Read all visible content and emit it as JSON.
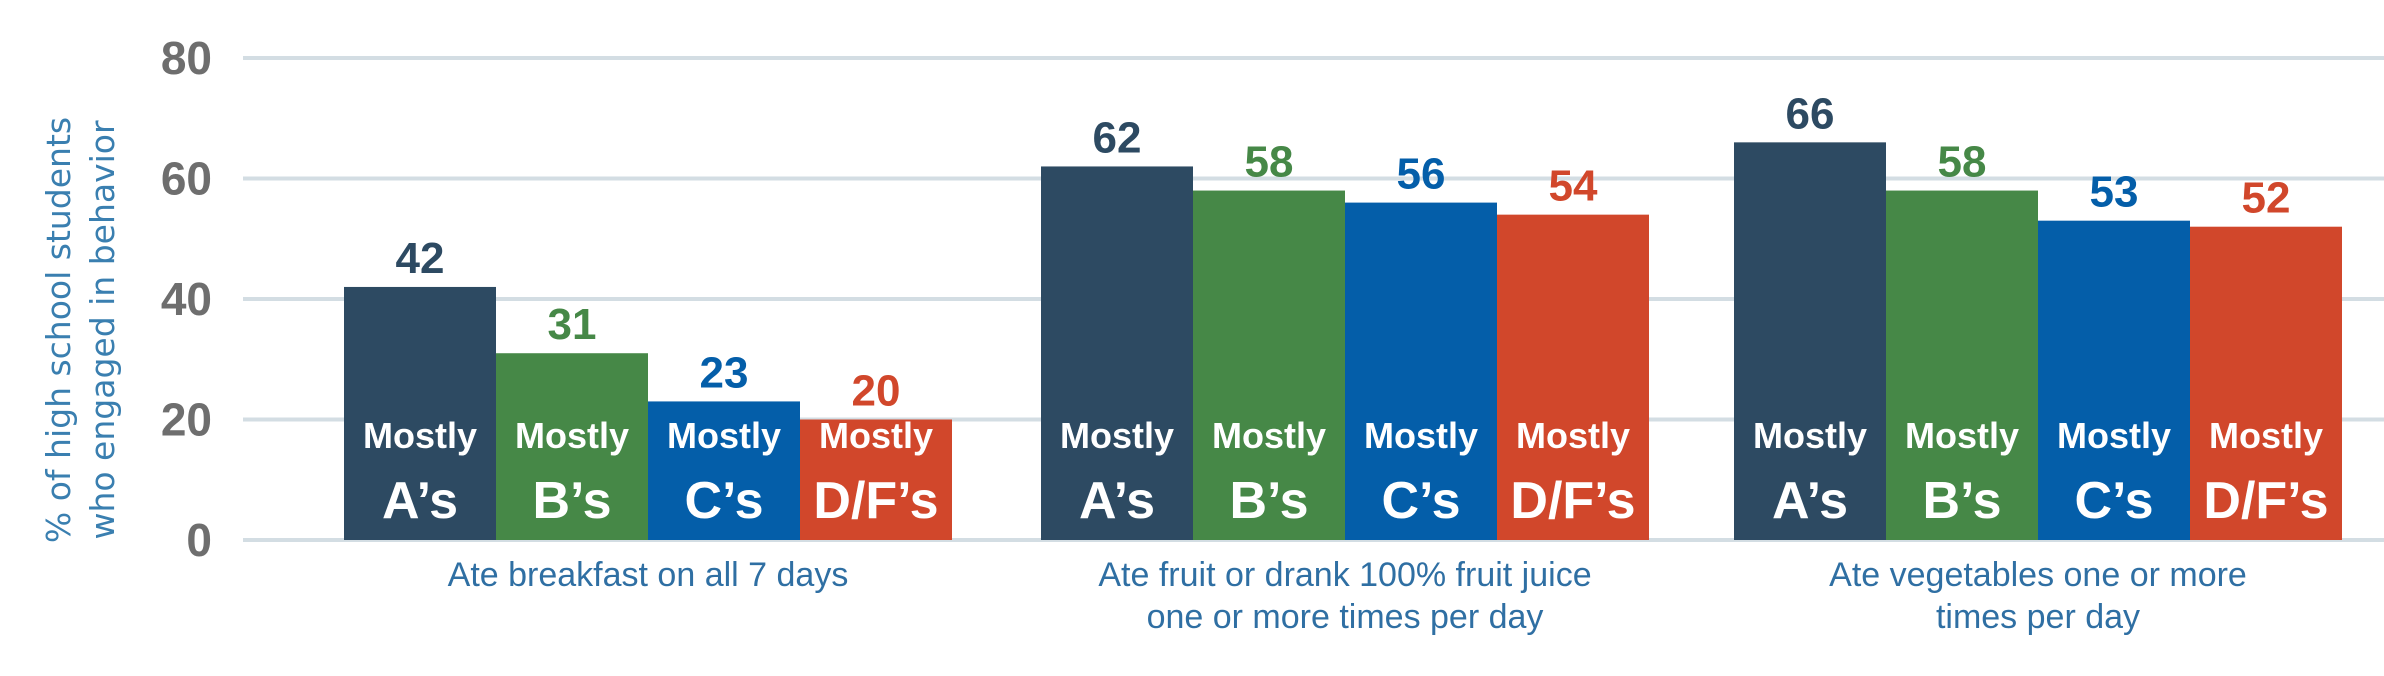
{
  "chart_data": {
    "type": "bar",
    "title": "",
    "ylabel": [
      "% of high school students",
      "who engaged in behavior"
    ],
    "xlabel": "",
    "ylim": [
      0,
      80
    ],
    "yticks": [
      0,
      20,
      40,
      60,
      80
    ],
    "grid": true,
    "legend": "none (series labels printed inside bars)",
    "categories": [
      [
        "Ate breakfast on all 7 days"
      ],
      [
        "Ate fruit or drank 100% fruit juice",
        "one or more times per day"
      ],
      [
        "Ate vegetables one or more",
        "times per day"
      ]
    ],
    "series": [
      {
        "name": "Mostly A's",
        "label_top": "Mostly",
        "label_bottom": "A’s",
        "color": "#2d4a62",
        "values": [
          42,
          62,
          66
        ]
      },
      {
        "name": "Mostly B's",
        "label_top": "Mostly",
        "label_bottom": "B’s",
        "color": "#468847",
        "values": [
          31,
          58,
          58
        ]
      },
      {
        "name": "Mostly C's",
        "label_top": "Mostly",
        "label_bottom": "C’s",
        "color": "#045ea9",
        "values": [
          23,
          56,
          53
        ]
      },
      {
        "name": "Mostly D/F's",
        "label_top": "Mostly",
        "label_bottom": "D/F’s",
        "color": "#d1472b",
        "values": [
          20,
          54,
          52
        ]
      }
    ]
  }
}
